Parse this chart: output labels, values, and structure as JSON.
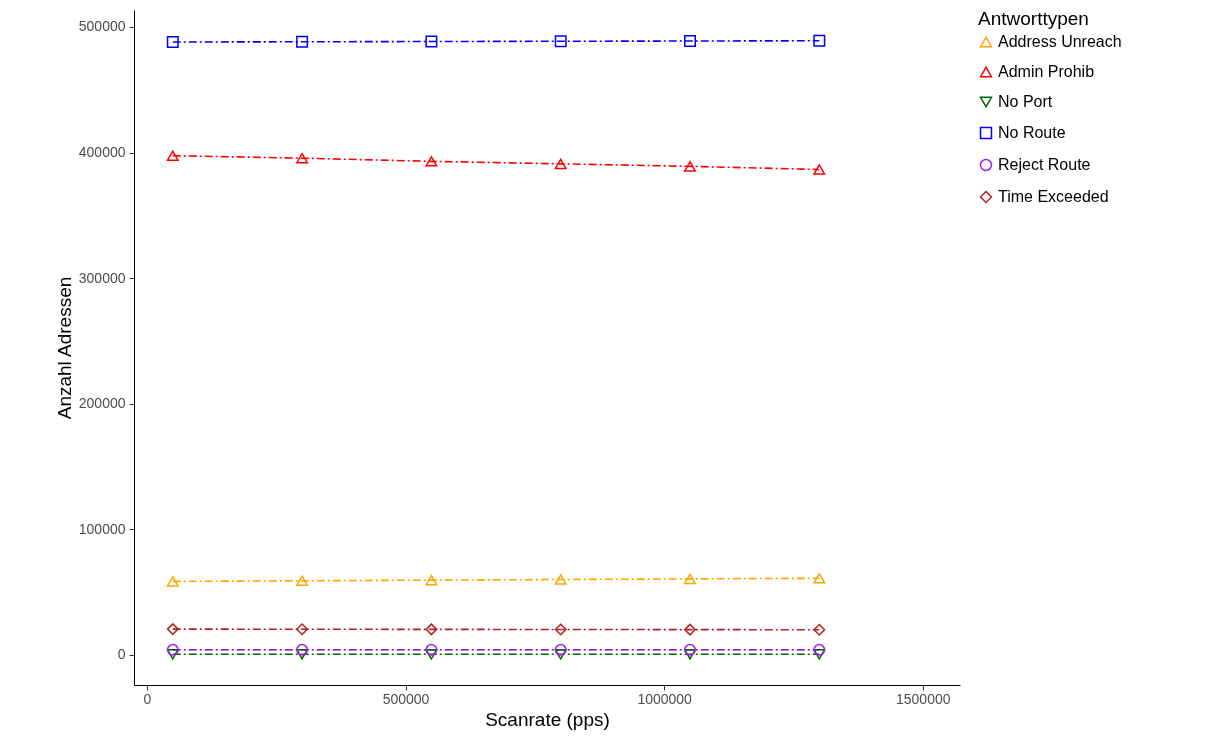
{
  "chart_data": {
    "type": "line",
    "xlabel": "Scanrate (pps)",
    "ylabel": "Anzahl Adressen",
    "legend_title": "Antworttypen",
    "x": [
      50000,
      300000,
      550000,
      800000,
      1050000,
      1300000
    ],
    "series": [
      {
        "name": "Address Unreach",
        "color": "#ffa500",
        "marker": "triangle",
        "values": [
          58500,
          59000,
          59500,
          60000,
          60500,
          61000
        ]
      },
      {
        "name": "Admin Prohib",
        "color": "#ff0000",
        "marker": "triangle",
        "values": [
          397500,
          395500,
          393000,
          391000,
          389000,
          386500
        ]
      },
      {
        "name": "No Port",
        "color": "#006400",
        "marker": "triangle-down",
        "values": [
          500,
          500,
          500,
          500,
          500,
          500
        ]
      },
      {
        "name": "No Route",
        "color": "#0000ff",
        "marker": "square",
        "values": [
          488000,
          488200,
          488400,
          488600,
          488800,
          489000
        ]
      },
      {
        "name": "Reject Route",
        "color": "#a020f0",
        "marker": "circle",
        "values": [
          4000,
          4000,
          4000,
          4000,
          4000,
          4000
        ]
      },
      {
        "name": "Time Exceeded",
        "color": "#b22222",
        "marker": "diamond",
        "values": [
          20500,
          20400,
          20300,
          20200,
          20100,
          20000
        ]
      }
    ],
    "xlim": [
      -25000,
      1572000
    ],
    "ylim": [
      -24000,
      513500
    ],
    "xticks": [
      0,
      500000,
      1000000,
      1500000
    ],
    "yticks": [
      0,
      100000,
      200000,
      300000,
      400000,
      500000
    ],
    "grid": false,
    "legend": "right",
    "line_style": "dashed"
  }
}
